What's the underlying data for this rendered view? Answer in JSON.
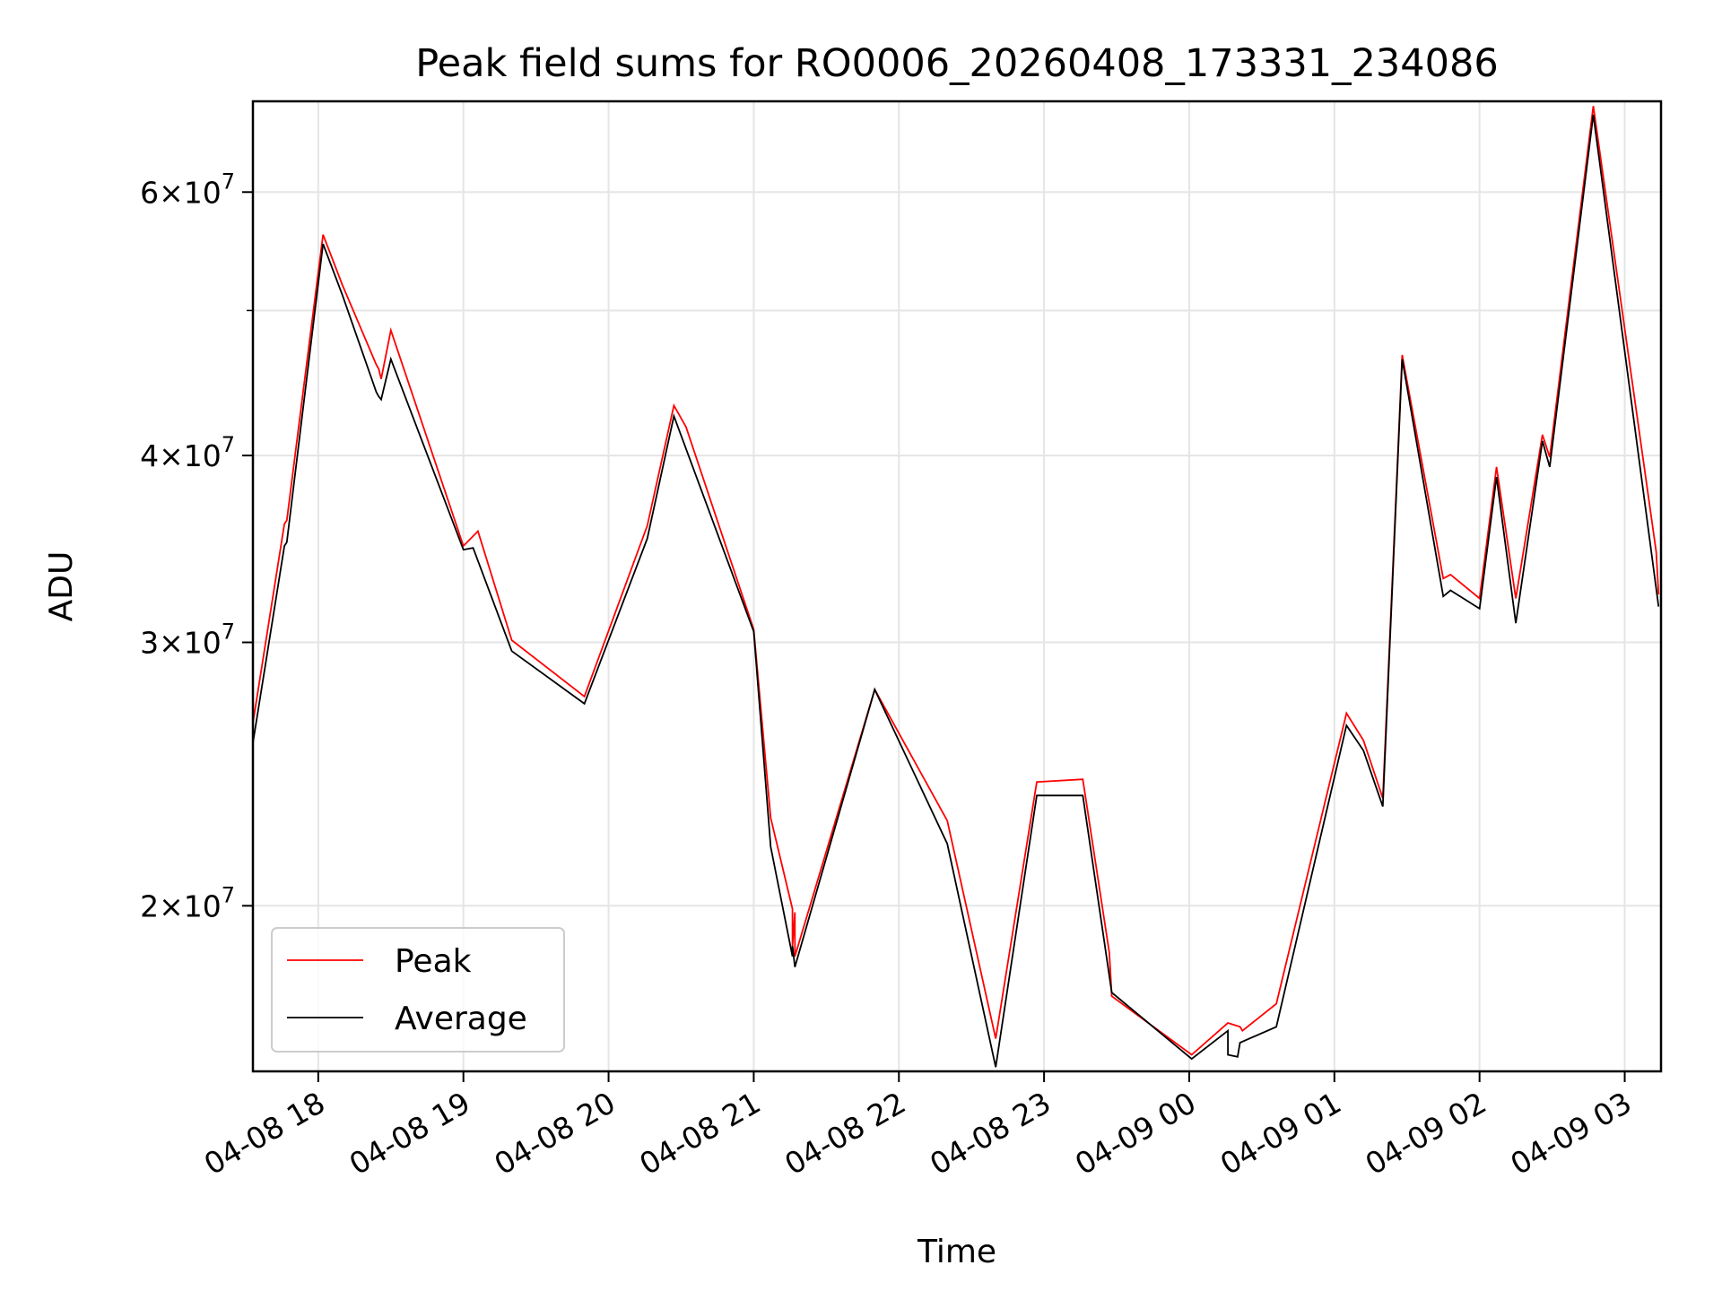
{
  "chart_data": {
    "type": "line",
    "title": "Peak field sums for RO0006_20260408_173331_234086",
    "xlabel": "Time",
    "ylabel": "ADU",
    "x_unit": "datetime",
    "xlim": [
      "2026-04-08T17:33",
      "2026-04-09T03:15"
    ],
    "ylim": [
      15500000,
      69000000
    ],
    "yscale": "log",
    "grid": true,
    "legend_position": "lower-left",
    "x_ticks": [
      {
        "value": "2026-04-08T18:00",
        "label": "04-08 18"
      },
      {
        "value": "2026-04-08T19:00",
        "label": "04-08 19"
      },
      {
        "value": "2026-04-08T20:00",
        "label": "04-08 20"
      },
      {
        "value": "2026-04-08T21:00",
        "label": "04-08 21"
      },
      {
        "value": "2026-04-08T22:00",
        "label": "04-08 22"
      },
      {
        "value": "2026-04-08T23:00",
        "label": "04-08 23"
      },
      {
        "value": "2026-04-09T00:00",
        "label": "04-09 00"
      },
      {
        "value": "2026-04-09T01:00",
        "label": "04-09 01"
      },
      {
        "value": "2026-04-09T02:00",
        "label": "04-09 02"
      },
      {
        "value": "2026-04-09T03:00",
        "label": "04-09 03"
      }
    ],
    "y_ticks": [
      {
        "value": 20000000,
        "mantissa": "2",
        "exponent": "7"
      },
      {
        "value": 30000000,
        "mantissa": "3",
        "exponent": "7"
      },
      {
        "value": 40000000,
        "mantissa": "4",
        "exponent": "7"
      },
      {
        "value": 60000000,
        "mantissa": "6",
        "exponent": "7"
      }
    ],
    "y_minor_ticks": [
      50000000
    ],
    "series": [
      {
        "name": "Peak",
        "color": "#ff0000",
        "points": [
          [
            "2026-04-08T17:33",
            26500000
          ],
          [
            "2026-04-08T17:46",
            36000000
          ],
          [
            "2026-04-08T17:47",
            36200000
          ],
          [
            "2026-04-08T18:02",
            56200000
          ],
          [
            "2026-04-08T18:10",
            52000000
          ],
          [
            "2026-04-08T18:24",
            46000000
          ],
          [
            "2026-04-08T18:25",
            45700000
          ],
          [
            "2026-04-08T18:26",
            45000000
          ],
          [
            "2026-04-08T18:30",
            48500000
          ],
          [
            "2026-04-08T19:00",
            34800000
          ],
          [
            "2026-04-08T19:06",
            35600000
          ],
          [
            "2026-04-08T19:20",
            30100000
          ],
          [
            "2026-04-08T19:50",
            27600000
          ],
          [
            "2026-04-08T20:16",
            35900000
          ],
          [
            "2026-04-08T20:27",
            43200000
          ],
          [
            "2026-04-08T20:32",
            41800000
          ],
          [
            "2026-04-08T21:00",
            30600000
          ],
          [
            "2026-04-08T21:07",
            22900000
          ],
          [
            "2026-04-08T21:16",
            19900000
          ],
          [
            "2026-04-08T21:16",
            18800000
          ],
          [
            "2026-04-08T21:17",
            19800000
          ],
          [
            "2026-04-08T21:17",
            18500000
          ],
          [
            "2026-04-08T21:50",
            27900000
          ],
          [
            "2026-04-08T22:20",
            22800000
          ],
          [
            "2026-04-08T22:40",
            16300000
          ],
          [
            "2026-04-08T22:57",
            24200000
          ],
          [
            "2026-04-08T23:16",
            24300000
          ],
          [
            "2026-04-08T23:27",
            18600000
          ],
          [
            "2026-04-08T23:28",
            17400000
          ],
          [
            "2026-04-09T00:01",
            15900000
          ],
          [
            "2026-04-09T00:16",
            16700000
          ],
          [
            "2026-04-09T00:21",
            16600000
          ],
          [
            "2026-04-09T00:22",
            16500000
          ],
          [
            "2026-04-09T00:36",
            17200000
          ],
          [
            "2026-04-09T01:05",
            26900000
          ],
          [
            "2026-04-09T01:12",
            25800000
          ],
          [
            "2026-04-09T01:20",
            23600000
          ],
          [
            "2026-04-09T01:28",
            46700000
          ],
          [
            "2026-04-09T01:45",
            33100000
          ],
          [
            "2026-04-09T01:48",
            33300000
          ],
          [
            "2026-04-09T02:00",
            32100000
          ],
          [
            "2026-04-09T02:07",
            39300000
          ],
          [
            "2026-04-09T02:15",
            32100000
          ],
          [
            "2026-04-09T02:26",
            41300000
          ],
          [
            "2026-04-09T02:29",
            39900000
          ],
          [
            "2026-04-09T02:47",
            68500000
          ],
          [
            "2026-04-09T03:13",
            34500000
          ],
          [
            "2026-04-09T03:14",
            32300000
          ]
        ]
      },
      {
        "name": "Average",
        "color": "#000000",
        "points": [
          [
            "2026-04-08T17:33",
            25700000
          ],
          [
            "2026-04-08T17:46",
            34800000
          ],
          [
            "2026-04-08T17:47",
            35000000
          ],
          [
            "2026-04-08T18:02",
            55400000
          ],
          [
            "2026-04-08T18:10",
            51200000
          ],
          [
            "2026-04-08T18:24",
            44100000
          ],
          [
            "2026-04-08T18:25",
            43800000
          ],
          [
            "2026-04-08T18:26",
            43600000
          ],
          [
            "2026-04-08T18:30",
            46400000
          ],
          [
            "2026-04-08T19:00",
            34600000
          ],
          [
            "2026-04-08T19:04",
            34700000
          ],
          [
            "2026-04-08T19:20",
            29600000
          ],
          [
            "2026-04-08T19:50",
            27300000
          ],
          [
            "2026-04-08T20:16",
            35200000
          ],
          [
            "2026-04-08T20:27",
            42500000
          ],
          [
            "2026-04-08T21:00",
            30500000
          ],
          [
            "2026-04-08T21:07",
            21900000
          ],
          [
            "2026-04-08T21:16",
            18500000
          ],
          [
            "2026-04-08T21:16",
            18800000
          ],
          [
            "2026-04-08T21:17",
            18200000
          ],
          [
            "2026-04-08T21:50",
            27900000
          ],
          [
            "2026-04-08T22:20",
            22000000
          ],
          [
            "2026-04-08T22:40",
            15600000
          ],
          [
            "2026-04-08T22:57",
            23700000
          ],
          [
            "2026-04-08T23:16",
            23700000
          ],
          [
            "2026-04-08T23:28",
            17500000
          ],
          [
            "2026-04-09T00:01",
            15800000
          ],
          [
            "2026-04-09T00:16",
            16500000
          ],
          [
            "2026-04-09T00:16",
            15900000
          ],
          [
            "2026-04-09T00:20",
            15850000
          ],
          [
            "2026-04-09T00:21",
            16200000
          ],
          [
            "2026-04-09T00:36",
            16600000
          ],
          [
            "2026-04-09T01:05",
            26400000
          ],
          [
            "2026-04-09T01:12",
            25400000
          ],
          [
            "2026-04-09T01:20",
            23300000
          ],
          [
            "2026-04-09T01:28",
            46400000
          ],
          [
            "2026-04-09T01:45",
            32200000
          ],
          [
            "2026-04-09T01:48",
            32500000
          ],
          [
            "2026-04-09T02:00",
            31600000
          ],
          [
            "2026-04-09T02:07",
            38700000
          ],
          [
            "2026-04-09T02:15",
            30900000
          ],
          [
            "2026-04-09T02:26",
            40900000
          ],
          [
            "2026-04-09T02:29",
            39300000
          ],
          [
            "2026-04-09T02:47",
            67600000
          ],
          [
            "2026-04-09T03:14",
            31700000
          ]
        ]
      }
    ]
  },
  "colors": {
    "axes": "#000000",
    "grid": "#e5e5e5",
    "legend_border": "#cccccc",
    "background": "#ffffff"
  }
}
